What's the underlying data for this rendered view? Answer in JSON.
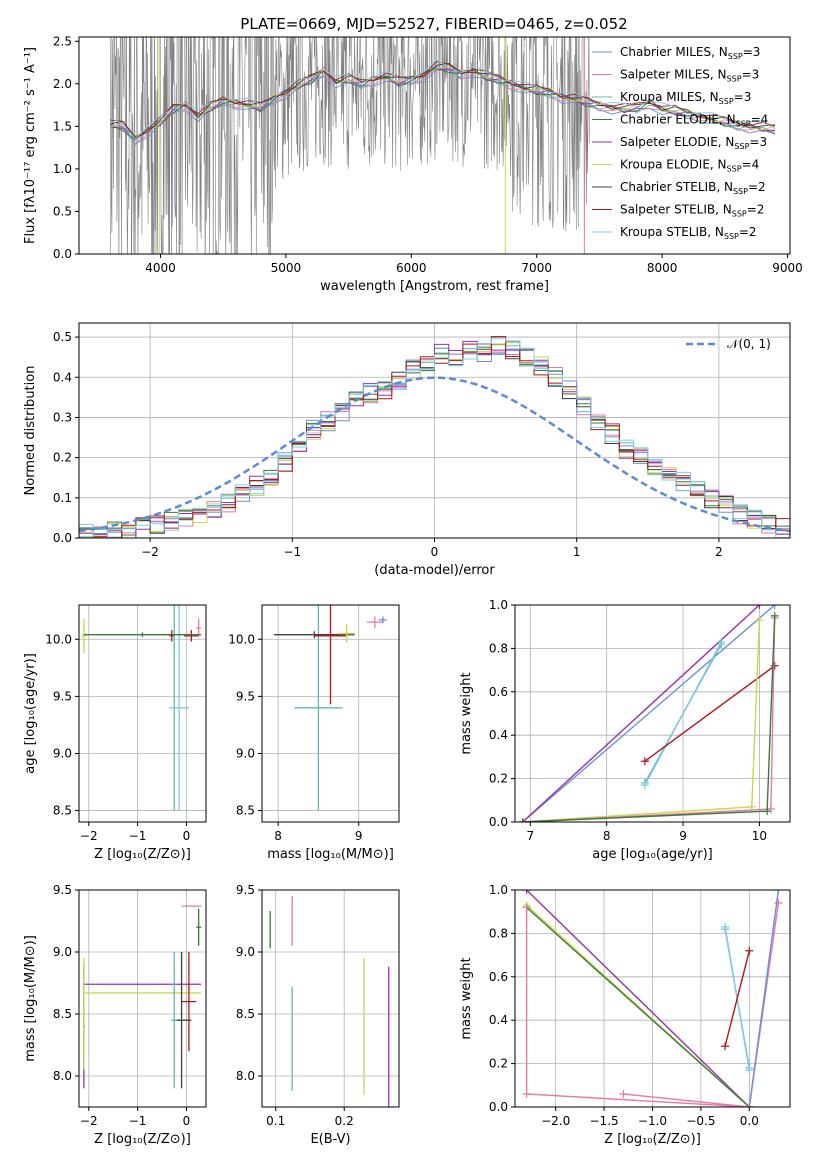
{
  "figure_title": "PLATE=0669, MJD=52527, FIBERID=0465, z=0.052",
  "series_colors": [
    "#6a8fd8",
    "#e878a8",
    "#5fb8b8",
    "#3a7a3a",
    "#9a2fb0",
    "#c8d84a",
    "#404040",
    "#b01818",
    "#80c8e8"
  ],
  "chart_data": [
    {
      "id": "spectrum",
      "type": "line",
      "xlabel": "wavelength [Angstrom, rest frame]",
      "ylabel": "Flux [fλ10⁻¹⁷ erg cm⁻² s⁻¹ A⁻¹]",
      "xlim": [
        3350,
        9020
      ],
      "ylim": [
        0,
        2.55
      ],
      "xticks": [
        4000,
        5000,
        6000,
        7000,
        8000,
        9000
      ],
      "yticks": [
        0.0,
        0.5,
        1.0,
        1.5,
        2.0,
        2.5
      ],
      "grid": false,
      "legend": "top-right",
      "legend_entries": [
        {
          "label": "Chabrier MILES, N",
          "sub": "SSP",
          "n": "=3"
        },
        {
          "label": "Salpeter MILES, N",
          "sub": "SSP",
          "n": "=3"
        },
        {
          "label": "Kroupa MILES, N",
          "sub": "SSP",
          "n": "=3"
        },
        {
          "label": "Chabrier ELODIE, N",
          "sub": "SSP",
          "n": "=4"
        },
        {
          "label": "Salpeter ELODIE, N",
          "sub": "SSP",
          "n": "=3"
        },
        {
          "label": "Kroupa ELODIE, N",
          "sub": "SSP",
          "n": "=4"
        },
        {
          "label": "Chabrier STELIB, N",
          "sub": "SSP",
          "n": "=2"
        },
        {
          "label": "Salpeter STELIB, N",
          "sub": "SSP",
          "n": "=2"
        },
        {
          "label": "Kroupa STELIB, N",
          "sub": "SSP",
          "n": "=2"
        }
      ],
      "data_range": [
        3600,
        7420
      ],
      "model_x": [
        3600,
        3700,
        3800,
        3900,
        4000,
        4100,
        4200,
        4300,
        4400,
        4500,
        4600,
        4700,
        4800,
        4900,
        5000,
        5100,
        5200,
        5300,
        5400,
        5500,
        5600,
        5700,
        5800,
        5900,
        6000,
        6100,
        6200,
        6300,
        6400,
        6500,
        6600,
        6700,
        6800,
        6900,
        7000,
        7100,
        7200,
        7300,
        7400,
        7500,
        7600,
        7700,
        7800,
        7900,
        8000,
        8100,
        8200,
        8300,
        8400,
        8500,
        8600,
        8700,
        8800,
        8900
      ],
      "model_y": [
        1.52,
        1.5,
        1.35,
        1.45,
        1.55,
        1.7,
        1.75,
        1.62,
        1.72,
        1.8,
        1.78,
        1.75,
        1.72,
        1.82,
        1.9,
        1.98,
        2.05,
        2.15,
        2.02,
        2.05,
        2.0,
        2.05,
        2.08,
        2.02,
        2.05,
        2.1,
        2.2,
        2.18,
        2.12,
        2.15,
        2.08,
        2.05,
        2.0,
        1.95,
        1.92,
        1.9,
        1.85,
        1.82,
        1.78,
        1.75,
        1.72,
        1.7,
        1.72,
        1.78,
        1.7,
        1.68,
        1.65,
        1.62,
        1.58,
        1.55,
        1.52,
        1.5,
        1.48,
        1.46
      ]
    },
    {
      "id": "residuals",
      "type": "step",
      "xlabel": "(data-model)/error",
      "ylabel": "Normed distribution",
      "xlim": [
        -2.5,
        2.5
      ],
      "ylim": [
        0,
        0.535
      ],
      "xticks": [
        -2,
        -1,
        0,
        1,
        2
      ],
      "yticks": [
        0.0,
        0.1,
        0.2,
        0.3,
        0.4,
        0.5
      ],
      "grid": true,
      "legend": "top-right",
      "legend_label": "𝒩(0, 1)",
      "gaussian": {
        "mean": 0,
        "sigma": 1,
        "color": "#5b8bd6"
      },
      "bin_width": 0.1,
      "bins_start": -2.5,
      "hist": [
        0.01,
        0.01,
        0.015,
        0.02,
        0.025,
        0.03,
        0.04,
        0.05,
        0.06,
        0.075,
        0.09,
        0.11,
        0.13,
        0.15,
        0.19,
        0.23,
        0.27,
        0.29,
        0.31,
        0.34,
        0.36,
        0.37,
        0.39,
        0.42,
        0.44,
        0.46,
        0.45,
        0.47,
        0.46,
        0.48,
        0.47,
        0.45,
        0.43,
        0.4,
        0.37,
        0.33,
        0.29,
        0.26,
        0.22,
        0.2,
        0.18,
        0.16,
        0.14,
        0.12,
        0.1,
        0.08,
        0.06,
        0.045,
        0.035,
        0.025
      ]
    },
    {
      "id": "age-vs-Z",
      "type": "errorbar",
      "xlabel": "Z [log₁₀(Z/Z⊙)]",
      "ylabel": "age  [log₁₀(age/yr)]",
      "xlim": [
        -2.2,
        0.4
      ],
      "ylim": [
        8.4,
        10.3
      ],
      "xticks": [
        -2,
        -1,
        0
      ],
      "yticks": [
        8.5,
        9.0,
        9.5,
        10.0
      ],
      "grid": true,
      "points": [
        {
          "x": -2.1,
          "xerr": 0.05,
          "y": 10.03,
          "yerr": 0.15,
          "c": 5
        },
        {
          "x": -0.3,
          "xerr": 0.05,
          "y": 10.03,
          "yerr": 0.05,
          "c": 7
        },
        {
          "x": 0.1,
          "xerr": 0.15,
          "y": 10.03,
          "yerr": 0.05,
          "c": 7
        },
        {
          "x": -0.25,
          "xerr": 0.05,
          "y": 9.4,
          "yerr": 0.9,
          "c": 2
        },
        {
          "x": -0.15,
          "xerr": 0.2,
          "y": 9.4,
          "yerr": 0.9,
          "c": 8
        },
        {
          "x": 0.25,
          "xerr": 0.05,
          "y": 10.1,
          "yerr": 0.08,
          "c": 1
        },
        {
          "x": -0.9,
          "xerr": 1.2,
          "y": 10.04,
          "yerr": 0.02,
          "c": 3
        }
      ]
    },
    {
      "id": "age-vs-mass",
      "type": "errorbar",
      "xlabel": "mass [log₁₀(M/M⊙)]",
      "ylabel": "",
      "xlim": [
        7.8,
        9.5
      ],
      "ylim": [
        8.4,
        10.3
      ],
      "xticks": [
        8,
        9
      ],
      "yticks": [
        8.5,
        9.0,
        9.5,
        10.0
      ],
      "grid": true,
      "points": [
        {
          "x": 8.5,
          "xerr": 0.3,
          "y": 9.4,
          "yerr": 0.9,
          "c": 2
        },
        {
          "x": 8.45,
          "xerr": 0.5,
          "y": 10.04,
          "yerr": 0.03,
          "c": 6
        },
        {
          "x": 8.65,
          "xerr": 0.2,
          "y": 10.03,
          "yerr": 0.6,
          "c": 7
        },
        {
          "x": 8.85,
          "xerr": 0.1,
          "y": 10.05,
          "yerr": 0.08,
          "c": 5
        },
        {
          "x": 9.2,
          "xerr": 0.1,
          "y": 10.15,
          "yerr": 0.05,
          "c": 1
        },
        {
          "x": 9.3,
          "xerr": 0.05,
          "y": 10.17,
          "yerr": 0.03,
          "c": 0
        }
      ]
    },
    {
      "id": "weight-vs-age",
      "type": "line",
      "xlabel": "age  [log₁₀(age/yr)]",
      "ylabel": "mass weight",
      "xlim": [
        6.8,
        10.4
      ],
      "ylim": [
        0,
        1.0
      ],
      "xticks": [
        7,
        8,
        9,
        10
      ],
      "yticks": [
        0.0,
        0.2,
        0.4,
        0.6,
        0.8,
        1.0
      ],
      "grid": true,
      "lines": [
        {
          "c": 0,
          "x": [
            6.9,
            10.2
          ],
          "y": [
            0.0,
            1.0
          ]
        },
        {
          "c": 4,
          "x": [
            6.9,
            10.0
          ],
          "y": [
            0.0,
            1.0
          ]
        },
        {
          "c": 2,
          "x": [
            8.5,
            9.5
          ],
          "y": [
            0.18,
            0.82
          ]
        },
        {
          "c": 8,
          "x": [
            8.5,
            9.5
          ],
          "y": [
            0.17,
            0.83
          ]
        },
        {
          "c": 7,
          "x": [
            8.5,
            10.2
          ],
          "y": [
            0.28,
            0.72
          ]
        },
        {
          "c": 5,
          "x": [
            6.9,
            9.9,
            10.0
          ],
          "y": [
            0.0,
            0.07,
            0.93
          ]
        },
        {
          "c": 1,
          "x": [
            6.9,
            10.15,
            10.2
          ],
          "y": [
            0.0,
            0.06,
            0.94
          ]
        },
        {
          "c": 3,
          "x": [
            6.9,
            10.1,
            10.2
          ],
          "y": [
            0.0,
            0.05,
            0.95
          ]
        }
      ]
    },
    {
      "id": "mass-vs-Z",
      "type": "errorbar",
      "xlabel": "Z [log₁₀(Z/Z⊙)]",
      "ylabel": "mass [log₁₀(M/M⊙)]",
      "xlim": [
        -2.2,
        0.4
      ],
      "ylim": [
        7.75,
        9.5
      ],
      "xticks": [
        -2,
        -1,
        0
      ],
      "yticks": [
        8.0,
        8.5,
        9.0,
        9.5
      ],
      "grid": true,
      "points": [
        {
          "x": -0.9,
          "xerr": 1.2,
          "y": 8.74,
          "yerr": 0.0,
          "c": 4
        },
        {
          "x": -0.9,
          "xerr": 1.2,
          "y": 8.67,
          "yerr": 0.0,
          "c": 5
        },
        {
          "x": -2.1,
          "xerr": 0.02,
          "y": 8.4,
          "yerr": 0.5,
          "c": 4
        },
        {
          "x": -2.1,
          "xerr": 0.02,
          "y": 8.5,
          "yerr": 0.45,
          "c": 5
        },
        {
          "x": 0.05,
          "xerr": 0.15,
          "y": 8.6,
          "yerr": 0.4,
          "c": 7
        },
        {
          "x": -0.1,
          "xerr": 0.2,
          "y": 8.45,
          "yerr": 0.55,
          "c": 6
        },
        {
          "x": -0.25,
          "xerr": 0.05,
          "y": 8.45,
          "yerr": 0.55,
          "c": 2
        },
        {
          "x": 0.1,
          "xerr": 0.2,
          "y": 9.37,
          "yerr": 0.0,
          "c": 1
        },
        {
          "x": 0.25,
          "xerr": 0.05,
          "y": 9.2,
          "yerr": 0.15,
          "c": 3
        }
      ]
    },
    {
      "id": "mass-vs-EBV",
      "type": "errorbar",
      "xlabel": "E(B-V)",
      "ylabel": "",
      "xlim": [
        0.08,
        0.28
      ],
      "ylim": [
        7.75,
        9.5
      ],
      "xticks": [
        0.1,
        0.2
      ],
      "yticks": [
        8.0,
        8.5,
        9.0,
        9.5
      ],
      "grid": true,
      "points": [
        {
          "x": 0.092,
          "xerr": 0.0,
          "y": 9.18,
          "yerr": 0.15,
          "c": 3
        },
        {
          "x": 0.124,
          "xerr": 0.0,
          "y": 9.25,
          "yerr": 0.2,
          "c": 1
        },
        {
          "x": 0.124,
          "xerr": 0.0,
          "y": 8.3,
          "yerr": 0.42,
          "c": 2
        },
        {
          "x": 0.229,
          "xerr": 0.0,
          "y": 8.4,
          "yerr": 0.55,
          "c": 5
        },
        {
          "x": 0.265,
          "xerr": 0.0,
          "y": 8.3,
          "yerr": 0.58,
          "c": 4
        }
      ]
    },
    {
      "id": "weight-vs-Z",
      "type": "line",
      "xlabel": "Z [log₁₀(Z/Z⊙)]",
      "ylabel": "mass weight",
      "xlim": [
        -2.42,
        0.42
      ],
      "ylim": [
        0,
        1.0
      ],
      "xticks": [
        -2.0,
        -1.5,
        -1.0,
        -0.5,
        0.0
      ],
      "yticks": [
        0.0,
        0.2,
        0.4,
        0.6,
        0.8,
        1.0
      ],
      "grid": true,
      "lines": [
        {
          "c": 4,
          "x": [
            -2.3,
            0.0
          ],
          "y": [
            1.0,
            0.0
          ]
        },
        {
          "c": 5,
          "x": [
            -2.3,
            0.0
          ],
          "y": [
            0.93,
            0.0
          ]
        },
        {
          "c": 3,
          "x": [
            -2.3,
            0.0
          ],
          "y": [
            0.92,
            0.0
          ]
        },
        {
          "c": 1,
          "x": [
            -2.3,
            -2.3,
            0.0,
            0.3
          ],
          "y": [
            0.92,
            0.06,
            0.0,
            0.94
          ]
        },
        {
          "c": 0,
          "x": [
            0.0,
            0.3
          ],
          "y": [
            0.0,
            1.0
          ]
        },
        {
          "c": 2,
          "x": [
            -0.25,
            0.0
          ],
          "y": [
            0.82,
            0.18
          ]
        },
        {
          "c": 8,
          "x": [
            -0.25,
            0.0
          ],
          "y": [
            0.83,
            0.17
          ]
        },
        {
          "c": 7,
          "x": [
            -0.25,
            0.0
          ],
          "y": [
            0.28,
            0.72
          ]
        },
        {
          "c": 1,
          "x": [
            -1.3,
            0.0
          ],
          "y": [
            0.06,
            0.0
          ]
        }
      ]
    }
  ]
}
